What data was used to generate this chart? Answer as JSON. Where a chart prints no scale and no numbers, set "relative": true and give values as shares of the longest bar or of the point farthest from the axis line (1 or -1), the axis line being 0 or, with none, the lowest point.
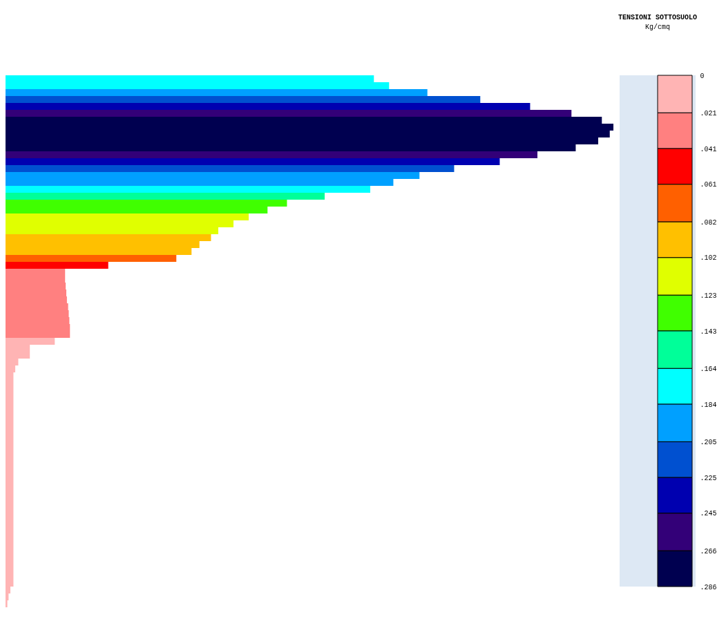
{
  "chart_data": {
    "type": "bar",
    "orientation": "horizontal",
    "relative": true,
    "legend_title": "TENSIONI SOTTOSUOLO",
    "clabel": "Kg/cmq",
    "categories": [
      null,
      null,
      null,
      null,
      null,
      null,
      null,
      null,
      null,
      null,
      null,
      null,
      null,
      null,
      null,
      null,
      null,
      null,
      null,
      null,
      null,
      null,
      null,
      null,
      null,
      null,
      null,
      null,
      null,
      null,
      null,
      null,
      null,
      null,
      null,
      null,
      null,
      null,
      null,
      null,
      null,
      null,
      null,
      null,
      null,
      null,
      null,
      null,
      null,
      null,
      null,
      null,
      null,
      null,
      null,
      null,
      null,
      null,
      null,
      null,
      null,
      null,
      null,
      null,
      null,
      null,
      null,
      null,
      null,
      null,
      null,
      null,
      null,
      null,
      null,
      null,
      null
    ],
    "values": [
      0.606,
      0.631,
      0.694,
      0.781,
      0.863,
      0.931,
      0.981,
      1,
      0.994,
      0.975,
      0.938,
      0.875,
      0.813,
      0.738,
      0.681,
      0.638,
      0.6,
      0.525,
      0.463,
      0.431,
      0.4,
      0.375,
      0.35,
      0.338,
      0.319,
      0.306,
      0.281,
      0.169,
      0.098,
      0.098,
      0.099,
      0.1,
      0.101,
      0.103,
      0.104,
      0.105,
      0.106,
      0.106,
      0.081,
      0.04,
      0.04,
      0.021,
      0.016,
      0.013,
      0.013,
      0.013,
      0.013,
      0.013,
      0.013,
      0.013,
      0.013,
      0.013,
      0.013,
      0.013,
      0.013,
      0.013,
      0.013,
      0.013,
      0.013,
      0.013,
      0.013,
      0.013,
      0.013,
      0.013,
      0.013,
      0.013,
      0.013,
      0.013,
      0.013,
      0.013,
      0.013,
      0.013,
      0.013,
      0.013,
      0.008,
      0.005,
      0.003
    ],
    "cvalues": [
      0.174,
      0.174,
      0.195,
      0.215,
      0.235,
      0.256,
      0.276,
      0.276,
      0.276,
      0.276,
      0.276,
      0.256,
      0.235,
      0.215,
      0.195,
      0.195,
      0.174,
      0.154,
      0.133,
      0.133,
      0.113,
      0.113,
      0.113,
      0.092,
      0.092,
      0.092,
      0.072,
      0.051,
      0.031,
      0.031,
      0.031,
      0.031,
      0.031,
      0.031,
      0.031,
      0.031,
      0.031,
      0.031,
      0.01,
      0.01,
      0.01,
      0.01,
      0.01,
      0.01,
      0.01,
      0.01,
      0.01,
      0.01,
      0.01,
      0.01,
      0.01,
      0.01,
      0.01,
      0.01,
      0.01,
      0.01,
      0.01,
      0.01,
      0.01,
      0.01,
      0.01,
      0.01,
      0.01,
      0.01,
      0.01,
      0.01,
      0.01,
      0.01,
      0.01,
      0.01,
      0.01,
      0.01,
      0.01,
      0.01,
      0.01,
      0.01,
      0.01
    ],
    "colors": [
      "#00ffff",
      "#00ffff",
      "#00a0ff",
      "#0050d0",
      "#0000b0",
      "#330078",
      "#000050",
      "#000050",
      "#000050",
      "#000050",
      "#000050",
      "#330078",
      "#0000b0",
      "#0050d0",
      "#00a0ff",
      "#00a0ff",
      "#00ffff",
      "#00ff99",
      "#40ff00",
      "#40ff00",
      "#e0ff00",
      "#e0ff00",
      "#e0ff00",
      "#ffc000",
      "#ffc000",
      "#ffc000",
      "#ff6000",
      "#ff0000",
      "#ff8080",
      "#ff8080",
      "#ff8080",
      "#ff8080",
      "#ff8080",
      "#ff8080",
      "#ff8080",
      "#ff8080",
      "#ff8080",
      "#ff8080",
      "#ffb4b4",
      "#ffb4b4",
      "#ffb4b4",
      "#ffb4b4",
      "#ffb4b4",
      "#ffb4b4",
      "#ffb4b4",
      "#ffb4b4",
      "#ffb4b4",
      "#ffb4b4",
      "#ffb4b4",
      "#ffb4b4",
      "#ffb4b4",
      "#ffb4b4",
      "#ffb4b4",
      "#ffb4b4",
      "#ffb4b4",
      "#ffb4b4",
      "#ffb4b4",
      "#ffb4b4",
      "#ffb4b4",
      "#ffb4b4",
      "#ffb4b4",
      "#ffb4b4",
      "#ffb4b4",
      "#ffb4b4",
      "#ffb4b4",
      "#ffb4b4",
      "#ffb4b4",
      "#ffb4b4",
      "#ffb4b4",
      "#ffb4b4",
      "#ffb4b4",
      "#ffb4b4",
      "#ffb4b4",
      "#ffb4b4",
      "#ffb4b4",
      "#ffb4b4",
      "#ffb4b4"
    ],
    "clim": [
      0,
      0.286
    ],
    "cticks": [
      0,
      {
        "value": 0.021,
        "label": ".021"
      },
      {
        "value": 0.041,
        "label": ".041"
      },
      {
        "value": 0.061,
        "label": ".061"
      },
      {
        "value": 0.082,
        "label": ".082"
      },
      {
        "value": 0.102,
        "label": ".102"
      },
      {
        "value": 0.123,
        "label": ".123"
      },
      {
        "value": 0.143,
        "label": ".143"
      },
      {
        "value": 0.164,
        "label": ".164"
      },
      {
        "value": 0.184,
        "label": ".184"
      },
      {
        "value": 0.205,
        "label": ".205"
      },
      {
        "value": 0.225,
        "label": ".225"
      },
      {
        "value": 0.245,
        "label": ".245"
      },
      {
        "value": 0.266,
        "label": ".266"
      },
      {
        "value": 0.286,
        "label": ".286"
      }
    ]
  }
}
